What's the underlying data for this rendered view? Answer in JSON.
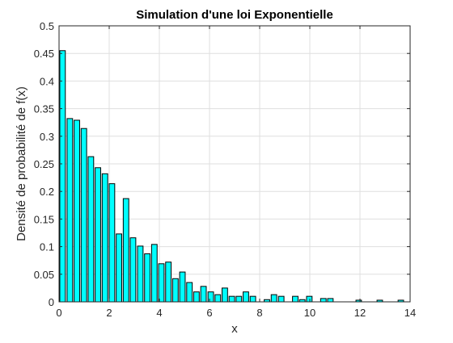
{
  "chart_data": {
    "type": "bar",
    "title": "Simulation d'une loi Exponentielle",
    "xlabel": "x",
    "ylabel": "Densité de probabilité de f(x)",
    "xlim": [
      0,
      14
    ],
    "ylim": [
      0,
      0.5
    ],
    "xticks": [
      0,
      2,
      4,
      6,
      8,
      10,
      12,
      14
    ],
    "xtick_labels": [
      "0",
      "2",
      "4",
      "6",
      "8",
      "10",
      "12",
      "14"
    ],
    "yticks": [
      0,
      0.05,
      0.1,
      0.15,
      0.2,
      0.25,
      0.3,
      0.35,
      0.4,
      0.45,
      0.5
    ],
    "ytick_labels": [
      "0",
      "0.05",
      "0.1",
      "0.15",
      "0.2",
      "0.25",
      "0.3",
      "0.35",
      "0.4",
      "0.45",
      "0.5"
    ],
    "grid": true,
    "bar_color": "#00FFFF",
    "edge_color": "#000000",
    "bar_width": 0.22,
    "x": [
      0.14,
      0.43,
      0.71,
      0.99,
      1.27,
      1.55,
      1.83,
      2.11,
      2.39,
      2.67,
      2.95,
      3.24,
      3.52,
      3.8,
      4.08,
      4.36,
      4.64,
      4.92,
      5.2,
      5.48,
      5.76,
      6.05,
      6.33,
      6.61,
      6.89,
      7.17,
      7.45,
      7.73,
      8.01,
      8.29,
      8.57,
      8.86,
      9.14,
      9.42,
      9.7,
      9.98,
      10.26,
      10.54,
      10.82,
      11.1,
      11.38,
      11.67,
      11.95,
      12.23,
      12.51,
      12.79,
      13.07,
      13.35,
      13.63
    ],
    "values": [
      0.455,
      0.332,
      0.329,
      0.314,
      0.263,
      0.243,
      0.232,
      0.214,
      0.123,
      0.187,
      0.116,
      0.101,
      0.087,
      0.104,
      0.069,
      0.072,
      0.042,
      0.054,
      0.035,
      0.018,
      0.028,
      0.018,
      0.013,
      0.025,
      0.01,
      0.01,
      0.018,
      0.01,
      0,
      0.004,
      0.013,
      0.01,
      0,
      0.01,
      0.004,
      0.01,
      0,
      0.006,
      0.006,
      0,
      0,
      0,
      0.003,
      0,
      0,
      0.003,
      0,
      0,
      0.003
    ]
  }
}
